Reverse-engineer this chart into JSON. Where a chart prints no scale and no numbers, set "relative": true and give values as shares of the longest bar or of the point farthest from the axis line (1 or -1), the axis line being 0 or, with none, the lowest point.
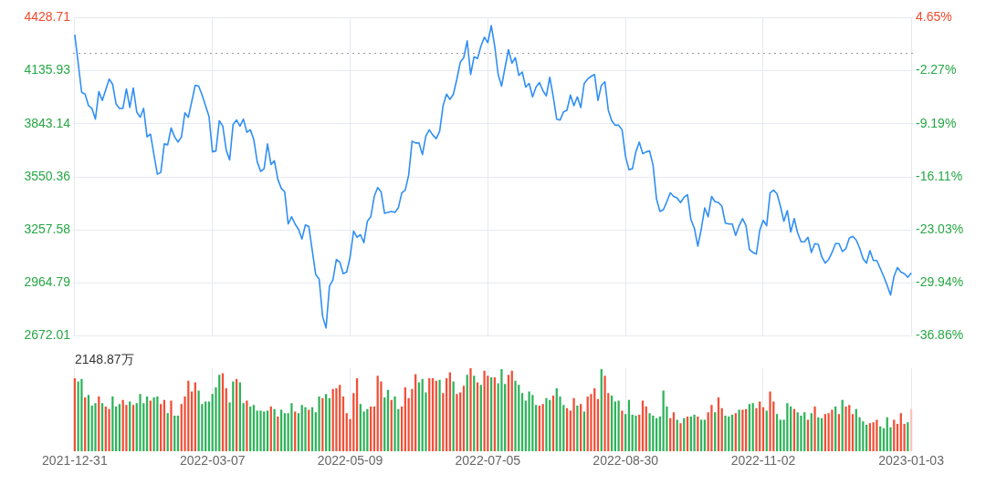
{
  "chart_data": [
    {
      "type": "line",
      "tick_labels": "y",
      "grid": true,
      "marker": "none",
      "categories": [
        "2021-12-31",
        null,
        null,
        null,
        null,
        null,
        null,
        null,
        null,
        null,
        null,
        null,
        null,
        null,
        null,
        null,
        null,
        null,
        null,
        null,
        null,
        null,
        null,
        null,
        null,
        null,
        null,
        null,
        null,
        null,
        null,
        null,
        null,
        null,
        null,
        null,
        null,
        null,
        null,
        null,
        "2022-03-07",
        null,
        null,
        null,
        null,
        null,
        null,
        null,
        null,
        null,
        null,
        null,
        null,
        null,
        null,
        null,
        null,
        null,
        null,
        null,
        null,
        null,
        null,
        null,
        null,
        null,
        null,
        null,
        null,
        null,
        null,
        null,
        null,
        null,
        null,
        null,
        null,
        null,
        null,
        null,
        "2022-05-09",
        null,
        null,
        null,
        null,
        null,
        null,
        null,
        null,
        null,
        null,
        null,
        null,
        null,
        null,
        null,
        null,
        null,
        null,
        null,
        null,
        null,
        null,
        null,
        null,
        null,
        null,
        null,
        null,
        null,
        null,
        null,
        null,
        null,
        null,
        null,
        null,
        null,
        null,
        null,
        "2022-07-05",
        null,
        null,
        null,
        null,
        null,
        null,
        null,
        null,
        null,
        null,
        null,
        null,
        null,
        null,
        null,
        null,
        null,
        null,
        null,
        null,
        null,
        null,
        null,
        null,
        null,
        null,
        null,
        null,
        null,
        null,
        null,
        null,
        null,
        null,
        null,
        null,
        null,
        null,
        null,
        "2022-08-30",
        null,
        null,
        null,
        null,
        null,
        null,
        null,
        null,
        null,
        null,
        null,
        null,
        null,
        null,
        null,
        null,
        null,
        null,
        null,
        null,
        null,
        null,
        null,
        null,
        null,
        null,
        null,
        null,
        null,
        null,
        null,
        null,
        null,
        null,
        null,
        null,
        null,
        null,
        null,
        "2022-11-02",
        null,
        null,
        null,
        null,
        null,
        null,
        null,
        null,
        null,
        null,
        null,
        null,
        null,
        null,
        null,
        null,
        null,
        null,
        null,
        null,
        null,
        null,
        null,
        null,
        null,
        null,
        null,
        null,
        null,
        null,
        null,
        null,
        null,
        null,
        null,
        null,
        null,
        null,
        null,
        null,
        null,
        null,
        "2023-01-03"
      ],
      "series": [
        {
          "color": "#2f8ff5",
          "values": [
            4335,
            4178,
            4017,
            4007,
            3943,
            3928,
            3869,
            4021,
            3972,
            4031,
            4090,
            4061,
            3953,
            3928,
            3928,
            4036,
            3933,
            4041,
            3909,
            3879,
            3928,
            3771,
            3786,
            3673,
            3565,
            3575,
            3732,
            3727,
            3820,
            3771,
            3742,
            3771,
            3904,
            3879,
            3967,
            4056,
            4051,
            4002,
            3943,
            3884,
            3688,
            3693,
            3860,
            3830,
            3698,
            3644,
            3840,
            3864,
            3830,
            3869,
            3796,
            3810,
            3757,
            3634,
            3580,
            3595,
            3732,
            3619,
            3639,
            3536,
            3487,
            3467,
            3290,
            3330,
            3290,
            3261,
            3207,
            3285,
            3276,
            3143,
            3011,
            2986,
            2780,
            2716,
            2947,
            2981,
            3094,
            3079,
            3016,
            3025,
            3109,
            3251,
            3217,
            3231,
            3187,
            3305,
            3330,
            3442,
            3491,
            3467,
            3349,
            3354,
            3359,
            3354,
            3379,
            3462,
            3477,
            3560,
            3747,
            3737,
            3737,
            3673,
            3776,
            3810,
            3781,
            3761,
            3801,
            3943,
            4007,
            3977,
            4007,
            4090,
            4183,
            4208,
            4301,
            4115,
            4213,
            4203,
            4272,
            4321,
            4291,
            4385,
            4272,
            4115,
            4051,
            4154,
            4252,
            4178,
            4208,
            4110,
            4129,
            4046,
            4066,
            3992,
            4046,
            4071,
            4026,
            3997,
            4100,
            3992,
            3869,
            3864,
            3909,
            3918,
            4002,
            3943,
            3992,
            3933,
            4066,
            4090,
            4105,
            4115,
            3972,
            4056,
            4075,
            3918,
            3860,
            3835,
            3835,
            3810,
            3663,
            3590,
            3595,
            3688,
            3742,
            3678,
            3688,
            3693,
            3614,
            3428,
            3359,
            3369,
            3413,
            3462,
            3442,
            3433,
            3408,
            3438,
            3452,
            3315,
            3266,
            3168,
            3261,
            3379,
            3330,
            3442,
            3413,
            3408,
            3388,
            3295,
            3290,
            3290,
            3227,
            3281,
            3320,
            3281,
            3148,
            3133,
            3124,
            3256,
            3310,
            3281,
            3462,
            3477,
            3457,
            3388,
            3305,
            3364,
            3246,
            3320,
            3241,
            3192,
            3192,
            3217,
            3133,
            3182,
            3177,
            3109,
            3074,
            3094,
            3133,
            3182,
            3182,
            3138,
            3153,
            3212,
            3222,
            3202,
            3158,
            3099,
            3074,
            3143,
            3089,
            3089,
            3045,
            3001,
            2952,
            2898,
            3001,
            3050,
            3025,
            3016,
            2996,
            3020
          ]
        }
      ],
      "ylim": [
        2672.01,
        4428.71
      ],
      "yticks": [
        2672.01,
        2964.79,
        3257.58,
        3550.36,
        3843.14,
        4135.93,
        4428.71
      ],
      "y2lim": [
        -36.86,
        4.65
      ],
      "y2ticks": [
        {
          "value": -36.86,
          "label": "-36.86%"
        },
        {
          "value": -29.94,
          "label": "-29.94%"
        },
        {
          "value": -23.03,
          "label": "-23.03%"
        },
        {
          "value": -16.11,
          "label": "-16.11%"
        },
        {
          "value": -9.19,
          "label": "-9.19%"
        },
        {
          "value": -2.27,
          "label": "-2.27%"
        },
        {
          "value": 4.65,
          "label": "4.65%"
        }
      ],
      "ref_lines": [
        {
          "axis": "y2",
          "value": 0,
          "color": "#9a9a9a",
          "line_style": "dotted"
        }
      ]
    },
    {
      "type": "bar",
      "relative": true,
      "grid": "x",
      "annotations": [
        "2148.87万"
      ],
      "categories": [
        "2021-12-31",
        null,
        null,
        null,
        null,
        null,
        null,
        null,
        null,
        null,
        null,
        null,
        null,
        null,
        null,
        null,
        null,
        null,
        null,
        null,
        null,
        null,
        null,
        null,
        null,
        null,
        null,
        null,
        null,
        null,
        null,
        null,
        null,
        null,
        null,
        null,
        null,
        null,
        null,
        null,
        "2022-03-07",
        null,
        null,
        null,
        null,
        null,
        null,
        null,
        null,
        null,
        null,
        null,
        null,
        null,
        null,
        null,
        null,
        null,
        null,
        null,
        null,
        null,
        null,
        null,
        null,
        null,
        null,
        null,
        null,
        null,
        null,
        null,
        null,
        null,
        null,
        null,
        null,
        null,
        null,
        null,
        "2022-05-09",
        null,
        null,
        null,
        null,
        null,
        null,
        null,
        null,
        null,
        null,
        null,
        null,
        null,
        null,
        null,
        null,
        null,
        null,
        null,
        null,
        null,
        null,
        null,
        null,
        null,
        null,
        null,
        null,
        null,
        null,
        null,
        null,
        null,
        null,
        null,
        null,
        null,
        null,
        null,
        "2022-07-05",
        null,
        null,
        null,
        null,
        null,
        null,
        null,
        null,
        null,
        null,
        null,
        null,
        null,
        null,
        null,
        null,
        null,
        null,
        null,
        null,
        null,
        null,
        null,
        null,
        null,
        null,
        null,
        null,
        null,
        null,
        null,
        null,
        null,
        null,
        null,
        null,
        null,
        null,
        null,
        "2022-08-30",
        null,
        null,
        null,
        null,
        null,
        null,
        null,
        null,
        null,
        null,
        null,
        null,
        null,
        null,
        null,
        null,
        null,
        null,
        null,
        null,
        null,
        null,
        null,
        null,
        null,
        null,
        null,
        null,
        null,
        null,
        null,
        null,
        null,
        null,
        null,
        null,
        null,
        null,
        null,
        "2022-11-02",
        null,
        null,
        null,
        null,
        null,
        null,
        null,
        null,
        null,
        null,
        null,
        null,
        null,
        null,
        null,
        null,
        null,
        null,
        null,
        null,
        null,
        null,
        null,
        null,
        null,
        null,
        null,
        null,
        null,
        null,
        null,
        null,
        null,
        null,
        null,
        null,
        null,
        null,
        null,
        null,
        null,
        null,
        "2023-01-03"
      ],
      "values": [
        0.88,
        0.84,
        0.87,
        0.65,
        0.68,
        0.55,
        0.58,
        0.66,
        0.58,
        0.54,
        0.51,
        0.66,
        0.54,
        0.57,
        0.62,
        0.56,
        0.6,
        0.56,
        0.58,
        0.69,
        0.58,
        0.66,
        0.61,
        0.65,
        0.66,
        0.57,
        0.62,
        0.46,
        0.61,
        0.43,
        0.43,
        0.57,
        0.66,
        0.85,
        0.72,
        0.83,
        0.73,
        0.57,
        0.6,
        0.6,
        0.69,
        0.77,
        0.92,
        0.94,
        0.76,
        0.59,
        0.84,
        0.87,
        0.83,
        0.58,
        0.61,
        0.54,
        0.56,
        0.49,
        0.49,
        0.48,
        0.49,
        0.54,
        0.51,
        0.42,
        0.5,
        0.46,
        0.46,
        0.58,
        0.48,
        0.46,
        0.56,
        0.53,
        0.5,
        0.53,
        0.47,
        0.66,
        0.64,
        0.69,
        0.64,
        0.75,
        0.76,
        0.8,
        0.66,
        0.46,
        0.39,
        0.7,
        0.88,
        0.57,
        0.48,
        0.51,
        0.54,
        0.54,
        0.91,
        0.84,
        0.65,
        0.74,
        0.62,
        0.66,
        0.51,
        0.54,
        0.77,
        0.64,
        0.75,
        0.93,
        0.83,
        0.87,
        0.71,
        0.88,
        0.88,
        0.85,
        0.86,
        0.7,
        0.88,
        0.95,
        0.84,
        0.69,
        0.71,
        0.79,
        0.92,
        1.0,
        0.91,
        0.83,
        0.8,
        0.97,
        0.91,
        0.89,
        0.89,
        0.82,
        0.99,
        0.81,
        0.92,
        0.97,
        0.85,
        0.8,
        0.7,
        0.61,
        0.72,
        0.68,
        0.56,
        0.55,
        0.57,
        0.64,
        0.62,
        0.67,
        0.76,
        0.66,
        0.56,
        0.52,
        0.49,
        0.64,
        0.55,
        0.57,
        0.48,
        0.66,
        0.69,
        0.76,
        0.63,
        0.99,
        0.91,
        0.7,
        0.67,
        0.6,
        0.61,
        0.49,
        0.45,
        0.62,
        0.44,
        0.43,
        0.44,
        0.61,
        0.54,
        0.46,
        0.43,
        0.4,
        0.42,
        0.73,
        0.54,
        0.4,
        0.47,
        0.38,
        0.34,
        0.4,
        0.42,
        0.42,
        0.44,
        0.42,
        0.38,
        0.38,
        0.47,
        0.56,
        0.47,
        0.65,
        0.52,
        0.43,
        0.42,
        0.44,
        0.46,
        0.5,
        0.5,
        0.51,
        0.57,
        0.58,
        0.52,
        0.6,
        0.53,
        0.49,
        0.72,
        0.6,
        0.45,
        0.38,
        0.38,
        0.58,
        0.54,
        0.51,
        0.47,
        0.43,
        0.47,
        0.38,
        0.46,
        0.54,
        0.41,
        0.4,
        0.45,
        0.46,
        0.5,
        0.54,
        0.45,
        0.62,
        0.54,
        0.56,
        0.45,
        0.51,
        0.41,
        0.36,
        0.32,
        0.34,
        0.35,
        0.38,
        0.3,
        0.28,
        0.41,
        0.29,
        0.38,
        0.33,
        0.46,
        0.33,
        0.35,
        0.51
      ],
      "colors": [
        "#f24e36",
        "#2eb35a",
        "#2eb35a",
        "#f24e36",
        "#2eb35a",
        "#2eb35a",
        "#2eb35a",
        "#f24e36",
        "#2eb35a",
        "#f24e36",
        "#f24e36",
        "#2eb35a",
        "#2eb35a",
        "#2eb35a",
        "#f24e36",
        "#f24e36",
        "#2eb35a",
        "#f24e36",
        "#2eb35a",
        "#2eb35a",
        "#2eb35a",
        "#2eb35a",
        "#f24e36",
        "#2eb35a",
        "#2eb35a",
        "#f24e36",
        "#f24e36",
        "#2eb35a",
        "#f24e36",
        "#2eb35a",
        "#2eb35a",
        "#f24e36",
        "#f24e36",
        "#f24e36",
        "#f24e36",
        "#f24e36",
        "#2eb35a",
        "#2eb35a",
        "#2eb35a",
        "#2eb35a",
        "#2eb35a",
        "#2eb35a",
        "#2eb35a",
        "#f24e36",
        "#f24e36",
        "#2eb35a",
        "#2eb35a",
        "#f24e36",
        "#2eb35a",
        "#2eb35a",
        "#f24e36",
        "#2eb35a",
        "#2eb35a",
        "#2eb35a",
        "#2eb35a",
        "#2eb35a",
        "#2eb35a",
        "#f24e36",
        "#2eb35a",
        "#f24e36",
        "#2eb35a",
        "#2eb35a",
        "#2eb35a",
        "#2eb35a",
        "#f24e36",
        "#2eb35a",
        "#2eb35a",
        "#2eb35a",
        "#f24e36",
        "#2eb35a",
        "#2eb35a",
        "#2eb35a",
        "#f24e36",
        "#2eb35a",
        "#2eb35a",
        "#f24e36",
        "#f24e36",
        "#f24e36",
        "#f24e36",
        "#f24e36",
        "#f24e36",
        "#f24e36",
        "#f24e36",
        "#2eb35a",
        "#2eb35a",
        "#2eb35a",
        "#f24e36",
        "#f24e36",
        "#f24e36",
        "#f24e36",
        "#2eb35a",
        "#2eb35a",
        "#f24e36",
        "#2eb35a",
        "#2eb35a",
        "#f24e36",
        "#f24e36",
        "#f24e36",
        "#f24e36",
        "#f24e36",
        "#2eb35a",
        "#2eb35a",
        "#2eb35a",
        "#f24e36",
        "#f24e36",
        "#f24e36",
        "#2eb35a",
        "#f24e36",
        "#f24e36",
        "#f24e36",
        "#2eb35a",
        "#f24e36",
        "#f24e36",
        "#f24e36",
        "#2eb35a",
        "#f24e36",
        "#2eb35a",
        "#f24e36",
        "#2eb35a",
        "#f24e36",
        "#f24e36",
        "#2eb35a",
        "#f24e36",
        "#2eb35a",
        "#2eb35a",
        "#2eb35a",
        "#f24e36",
        "#f24e36",
        "#2eb35a",
        "#2eb35a",
        "#2eb35a",
        "#2eb35a",
        "#2eb35a",
        "#2eb35a",
        "#2eb35a",
        "#f24e36",
        "#f24e36",
        "#2eb35a",
        "#2eb35a",
        "#f24e36",
        "#2eb35a",
        "#2eb35a",
        "#2eb35a",
        "#f24e36",
        "#f24e36",
        "#f24e36",
        "#2eb35a",
        "#f24e36",
        "#2eb35a",
        "#f24e36",
        "#f24e36",
        "#f24e36",
        "#f24e36",
        "#2eb35a",
        "#f24e36",
        "#f24e36",
        "#2eb35a",
        "#2eb35a",
        "#2eb35a",
        "#f24e36",
        "#2eb35a",
        "#2eb35a",
        "#2eb35a",
        "#2eb35a",
        "#f24e36",
        "#f24e36",
        "#f24e36",
        "#2eb35a",
        "#2eb35a",
        "#2eb35a",
        "#2eb35a",
        "#2eb35a",
        "#2eb35a",
        "#f24e36",
        "#f24e36",
        "#2eb35a",
        "#f24e36",
        "#2eb35a",
        "#f24e36",
        "#2eb35a",
        "#2eb35a",
        "#f24e36",
        "#2eb35a",
        "#2eb35a",
        "#f24e36",
        "#f24e36",
        "#2eb35a",
        "#f24e36",
        "#f24e36",
        "#2eb35a",
        "#2eb35a",
        "#2eb35a",
        "#f24e36",
        "#2eb35a",
        "#f24e36",
        "#f24e36",
        "#2eb35a",
        "#2eb35a",
        "#f24e36",
        "#f24e36",
        "#f24e36",
        "#2eb35a",
        "#f24e36",
        "#f24e36",
        "#2eb35a",
        "#2eb35a",
        "#2eb35a",
        "#2eb35a",
        "#2eb35a",
        "#f24e36",
        "#2eb35a",
        "#2eb35a",
        "#2eb35a",
        "#f24e36",
        "#2eb35a",
        "#f24e36",
        "#2eb35a",
        "#2eb35a",
        "#f24e36",
        "#f24e36",
        "#f24e36",
        "#2eb35a",
        "#f24e36",
        "#2eb35a",
        "#f24e36",
        "#f24e36",
        "#f24e36",
        "#2eb35a",
        "#2eb35a",
        "#2eb35a",
        "#2eb35a",
        "#f24e36",
        "#f24e36",
        "#f24e36",
        "#2eb35a",
        "#2eb35a",
        "#2eb35a",
        "#2eb35a",
        "#f24e36",
        "#f24e36",
        "#f24e36",
        "#f24e36",
        "#2eb35a",
        "#f9c4b8"
      ]
    }
  ]
}
